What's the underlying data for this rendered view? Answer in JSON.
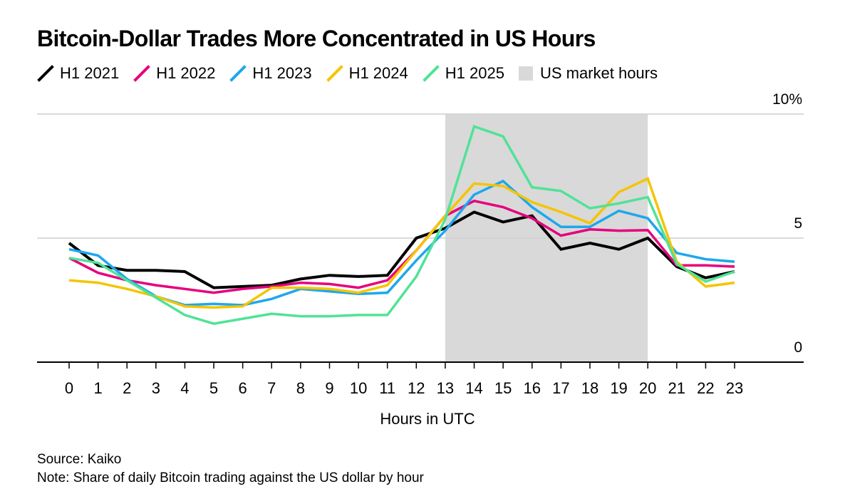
{
  "chart_data": {
    "type": "line",
    "title": "Bitcoin-Dollar Trades More Concentrated in US Hours",
    "xlabel": "Hours in UTC",
    "ylabel": "",
    "x": [
      0,
      1,
      2,
      3,
      4,
      5,
      6,
      7,
      8,
      9,
      10,
      11,
      12,
      13,
      14,
      15,
      16,
      17,
      18,
      19,
      20,
      21,
      22,
      23
    ],
    "ylim": [
      0,
      10
    ],
    "yticks": [
      0,
      5,
      10
    ],
    "ytick_labels": [
      "0",
      "5",
      "10%"
    ],
    "shaded_region": {
      "label": "US market hours",
      "x_start": 13,
      "x_end": 20,
      "color": "#d9d9d9"
    },
    "series": [
      {
        "name": "H1 2021",
        "color": "#000000",
        "values": [
          4.8,
          3.9,
          3.7,
          3.7,
          3.65,
          3.0,
          3.05,
          3.1,
          3.35,
          3.5,
          3.45,
          3.5,
          5.0,
          5.4,
          6.05,
          5.65,
          5.9,
          4.55,
          4.8,
          4.55,
          5.0,
          3.85,
          3.4,
          3.65
        ]
      },
      {
        "name": "H1 2022",
        "color": "#e6007e",
        "values": [
          4.2,
          3.6,
          3.3,
          3.1,
          2.95,
          2.8,
          2.95,
          3.05,
          3.2,
          3.15,
          3.0,
          3.3,
          4.5,
          5.9,
          6.5,
          6.25,
          5.8,
          5.1,
          5.35,
          5.3,
          5.32,
          3.9,
          3.9,
          3.85
        ]
      },
      {
        "name": "H1 2023",
        "color": "#1ea7ec",
        "values": [
          4.55,
          4.3,
          3.35,
          2.65,
          2.3,
          2.35,
          2.3,
          2.55,
          2.95,
          2.85,
          2.75,
          2.8,
          4.1,
          5.3,
          6.75,
          7.3,
          6.25,
          5.45,
          5.45,
          6.1,
          5.8,
          4.4,
          4.15,
          4.05
        ]
      },
      {
        "name": "H1 2024",
        "color": "#f5c400",
        "values": [
          3.3,
          3.2,
          2.95,
          2.65,
          2.25,
          2.2,
          2.25,
          3.0,
          3.0,
          2.95,
          2.8,
          3.1,
          4.5,
          5.9,
          7.2,
          7.1,
          6.45,
          6.05,
          5.6,
          6.85,
          7.4,
          4.05,
          3.05,
          3.2
        ]
      },
      {
        "name": "H1 2025",
        "color": "#4fe396",
        "values": [
          4.2,
          4.0,
          3.3,
          2.6,
          1.9,
          1.55,
          1.75,
          1.95,
          1.85,
          1.85,
          1.9,
          1.9,
          3.45,
          5.75,
          9.5,
          9.1,
          7.05,
          6.9,
          6.2,
          6.4,
          6.65,
          3.95,
          3.25,
          3.65
        ]
      }
    ]
  },
  "axis_title": "Hours in UTC",
  "legend": {
    "shaded_label": "US market hours"
  },
  "footer": {
    "source": "Source: Kaiko",
    "note": "Note: Share of daily Bitcoin trading against the US dollar by hour"
  }
}
